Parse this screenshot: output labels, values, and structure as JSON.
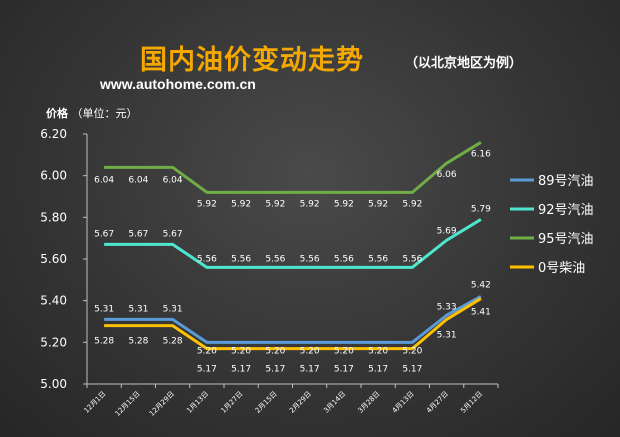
{
  "header": {
    "title": "国内油价变动走势",
    "subtitle": "（以北京地区为例）",
    "website": "www.autohome.com.cn"
  },
  "chart_data": {
    "type": "line",
    "ylabel": "价格",
    "ylabel_unit": "（单位：元）",
    "ylim": [
      5.0,
      6.2
    ],
    "yticks": [
      "5.00",
      "5.20",
      "5.40",
      "5.60",
      "5.80",
      "6.00",
      "6.20"
    ],
    "grid": false,
    "legend_position": "right",
    "categories": [
      "12月1日",
      "12月15日",
      "12月29日",
      "1月13日",
      "1月27日",
      "2月15日",
      "2月29日",
      "3月14日",
      "3月28日",
      "4月13日",
      "4月27日",
      "5月12日"
    ],
    "series": [
      {
        "name": "89号汽油",
        "color": "#5b9bd5",
        "values": [
          5.31,
          5.31,
          5.31,
          5.2,
          5.2,
          5.2,
          5.2,
          5.2,
          5.2,
          5.2,
          5.33,
          5.42
        ],
        "labels": [
          "5.31",
          "5.31",
          "5.31",
          "5.20",
          "5.20",
          "5.20",
          "5.20",
          "5.20",
          "5.20",
          "5.20",
          "5.33",
          "5.42"
        ]
      },
      {
        "name": "92号汽油",
        "color": "#4ee6d0",
        "values": [
          5.67,
          5.67,
          5.67,
          5.56,
          5.56,
          5.56,
          5.56,
          5.56,
          5.56,
          5.56,
          5.69,
          5.79
        ],
        "labels": [
          "5.67",
          "5.67",
          "5.67",
          "5.56",
          "5.56",
          "5.56",
          "5.56",
          "5.56",
          "5.56",
          "5.56",
          "5.69",
          "5.79"
        ]
      },
      {
        "name": "95号汽油",
        "color": "#70ad47",
        "values": [
          6.04,
          6.04,
          6.04,
          5.92,
          5.92,
          5.92,
          5.92,
          5.92,
          5.92,
          5.92,
          6.06,
          6.16
        ],
        "labels": [
          "6.04",
          "6.04",
          "6.04",
          "5.92",
          "5.92",
          "5.92",
          "5.92",
          "5.92",
          "5.92",
          "5.92",
          "6.06",
          "6.16"
        ]
      },
      {
        "name": "0号柴油",
        "color": "#ffc000",
        "values": [
          5.28,
          5.28,
          5.28,
          5.17,
          5.17,
          5.17,
          5.17,
          5.17,
          5.17,
          5.17,
          5.31,
          5.41
        ],
        "labels": [
          "5.28",
          "5.28",
          "5.28",
          "5.17",
          "5.17",
          "5.17",
          "5.17",
          "5.17",
          "5.17",
          "5.17",
          "5.31",
          "5.41"
        ]
      }
    ]
  }
}
